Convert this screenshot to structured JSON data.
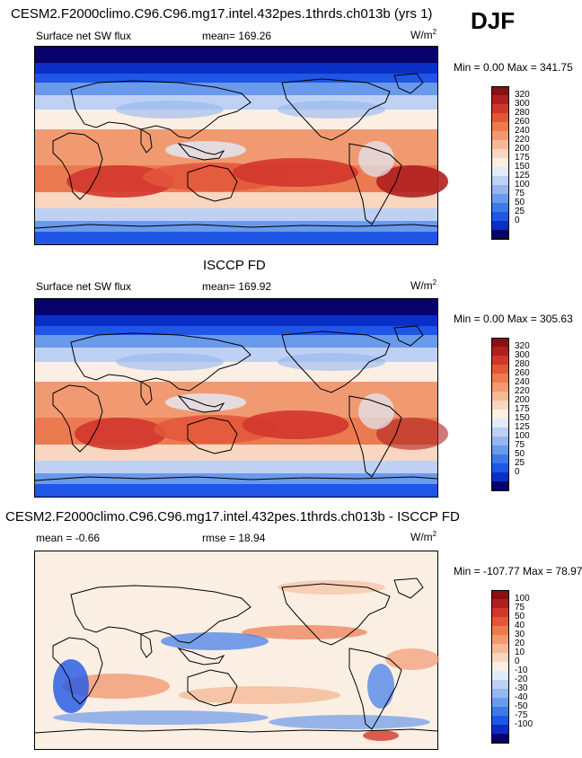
{
  "season": "DJF",
  "colors": {
    "positive_scale": [
      "#08006b",
      "#0a2fc6",
      "#1f56e6",
      "#3d7ae8",
      "#6a9aeb",
      "#95b6ef",
      "#bed1f4",
      "#e1ebf9",
      "#fbefe3",
      "#f8d6bf",
      "#f5b996",
      "#f19a72",
      "#ec7a50",
      "#e4563a",
      "#d2362b",
      "#b01f1f",
      "#8c0f12"
    ],
    "diff_scale": [
      "#08006b",
      "#0a2fc6",
      "#1f56e6",
      "#3d7ae8",
      "#6a9aeb",
      "#95b6ef",
      "#bed1f4",
      "#e1ebf9",
      "#fbefe3",
      "#f8d6bf",
      "#f5b996",
      "#f19a72",
      "#ec7a50",
      "#e4563a",
      "#d2362b",
      "#b01f1f",
      "#8c0f12"
    ]
  },
  "panels": [
    {
      "title": "CESM2.F2000climo.C96.C96.mg17.intel.432pes.1thrds.ch013b (yrs 1)",
      "left_label": "Surface net SW flux",
      "mid_label": "mean= 169.26",
      "units": "W/m",
      "units_sup": "2",
      "minmax": "Min =   0.00 Max = 341.75",
      "levels": [
        "320",
        "300",
        "280",
        "260",
        "240",
        "220",
        "200",
        "175",
        "150",
        "125",
        "100",
        "75",
        "50",
        "25",
        "0"
      ],
      "map_style": "model"
    },
    {
      "title": "ISCCP FD",
      "left_label": "Surface net SW flux",
      "mid_label": "mean= 169.92",
      "units": "W/m",
      "units_sup": "2",
      "minmax": "Min =   0.00 Max = 305.63",
      "levels": [
        "320",
        "300",
        "280",
        "260",
        "240",
        "220",
        "200",
        "175",
        "150",
        "125",
        "100",
        "75",
        "50",
        "25",
        "0"
      ],
      "map_style": "obs"
    },
    {
      "title": "CESM2.F2000climo.C96.C96.mg17.intel.432pes.1thrds.ch013b - ISCCP FD",
      "left_label": "mean =  -0.66",
      "mid_label": "rmse =  18.94",
      "units": "W/m",
      "units_sup": "2",
      "minmax": "Min = -107.77 Max =  78.97",
      "levels": [
        "100",
        "75",
        "50",
        "40",
        "30",
        "20",
        "10",
        "0",
        "-10",
        "-20",
        "-30",
        "-40",
        "-50",
        "-75",
        "-100"
      ],
      "map_style": "diff"
    }
  ]
}
